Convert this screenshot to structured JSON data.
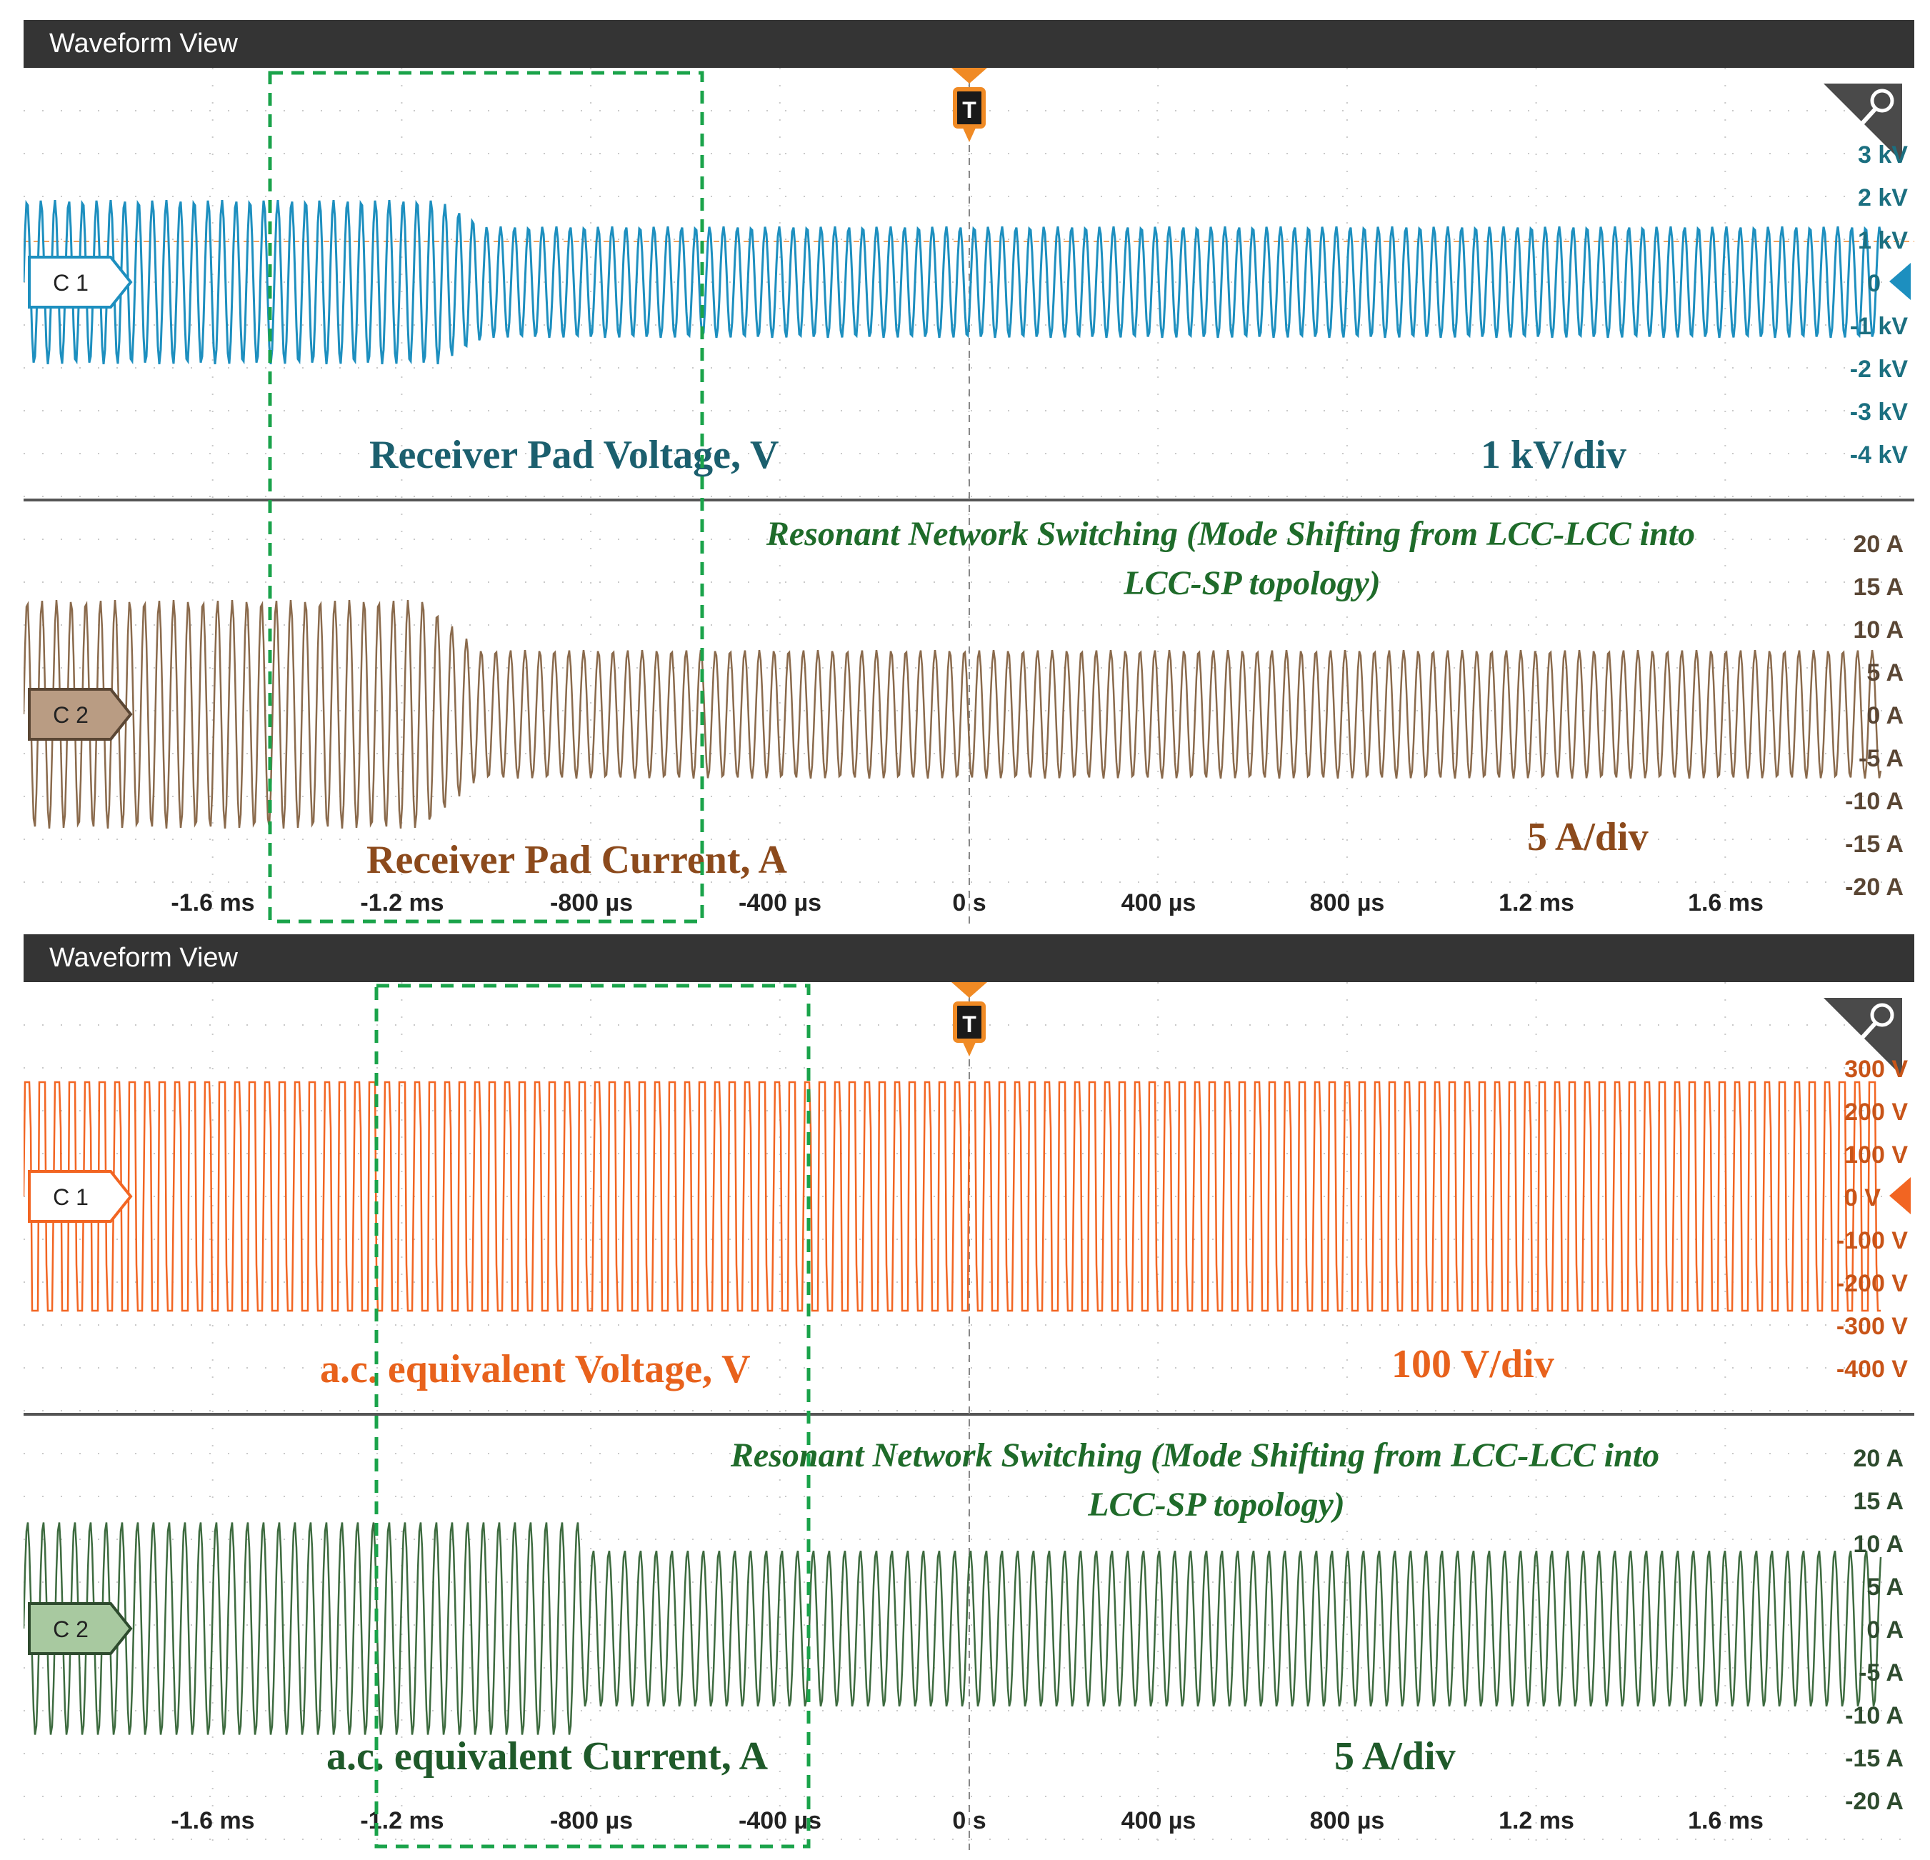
{
  "views": [
    {
      "title": "Waveform View",
      "trigger_label": "T",
      "channels": [
        {
          "id": "C 1",
          "signal_label": "Receiver Pad Voltage, V",
          "scale_label": "1 kV/div",
          "color": "#1d8fbf",
          "label_color": "#1b5f6e",
          "badge_fill": "#ffffff",
          "ticks": [
            "3 kV",
            "2 kV",
            "1 kV",
            "0",
            "-1 kV",
            "-2 kV",
            "-3 kV",
            "-4 kV"
          ]
        },
        {
          "id": "C 2",
          "signal_label": "Receiver Pad Current, A",
          "scale_label": "5 A/div",
          "color": "#8a6a4c",
          "label_color": "#8c4a1c",
          "badge_fill": "#b99c83",
          "annotation_line1": "Resonant Network Switching (Mode Shifting from LCC-LCC into",
          "annotation_line2": "LCC-SP topology)",
          "ticks": [
            "20 A",
            "15 A",
            "10 A",
            "5 A",
            "0 A",
            "-5 A",
            "-10 A",
            "-15 A",
            "-20 A"
          ]
        }
      ],
      "time_ticks": [
        "-1.6 ms",
        "-1.2 ms",
        "-800 µs",
        "-400 µs",
        "0 s",
        "400 µs",
        "800 µs",
        "1.2 ms",
        "1.6 ms"
      ]
    },
    {
      "title": "Waveform View",
      "trigger_label": "T",
      "channels": [
        {
          "id": "C 1",
          "signal_label": "a.c. equivalent Voltage, V",
          "scale_label": "100 V/div",
          "color": "#f26522",
          "label_color": "#e8621c",
          "badge_fill": "#ffffff",
          "ticks": [
            "300 V",
            "200 V",
            "100 V",
            "0 V",
            "-100 V",
            "-200 V",
            "-300 V",
            "-400 V"
          ]
        },
        {
          "id": "C 2",
          "signal_label": "a.c. equivalent Current, A",
          "scale_label": "5 A/div",
          "color": "#3d6b3f",
          "label_color": "#1f5a2a",
          "badge_fill": "#a8c9a0",
          "annotation_line1": "Resonant Network Switching (Mode Shifting from LCC-LCC into",
          "annotation_line2": "LCC-SP topology)",
          "ticks": [
            "20 A",
            "15 A",
            "10 A",
            "5 A",
            "0 A",
            "-5 A",
            "-10 A",
            "-15 A",
            "-20 A"
          ]
        }
      ],
      "time_ticks": [
        "-1.6 ms",
        "-1.2 ms",
        "-800 µs",
        "-400 µs",
        "0 s",
        "400 µs",
        "800 µs",
        "1.2 ms",
        "1.6 ms"
      ]
    }
  ],
  "highlight_color": "#1aa34a",
  "annotation_color": "#1f6b2a"
}
